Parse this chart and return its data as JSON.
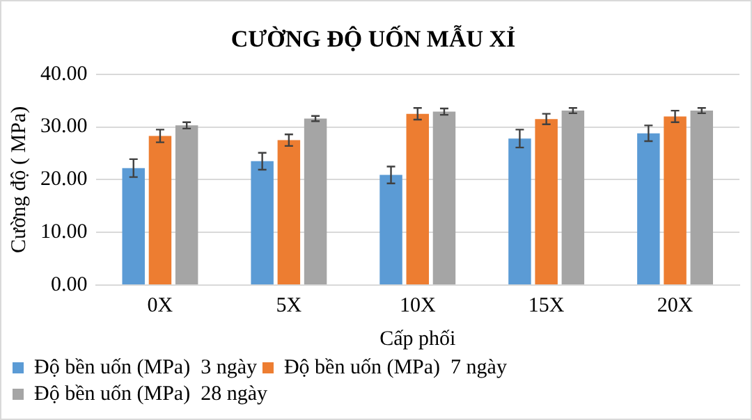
{
  "chart_data": {
    "type": "bar",
    "title": "CƯỜNG ĐỘ UỐN MẪU XỈ",
    "xlabel": "Cấp phối",
    "ylabel": "Cường độ ( MPa)",
    "categories": [
      "0X",
      "5X",
      "10X",
      "15X",
      "20X"
    ],
    "series": [
      {
        "name": "Độ bền uốn (MPa)  3 ngày",
        "color": "#5b9bd5",
        "values": [
          22.2,
          23.5,
          20.9,
          27.8,
          28.8
        ],
        "errors": [
          1.7,
          1.6,
          1.6,
          1.7,
          1.5
        ]
      },
      {
        "name": "Độ bền uốn (MPa)  7 ngày",
        "color": "#ed7d31",
        "values": [
          28.3,
          27.5,
          32.5,
          31.5,
          32.0
        ],
        "errors": [
          1.2,
          1.1,
          1.1,
          1.0,
          1.1
        ]
      },
      {
        "name": "Độ bền uốn (MPa)  28 ngày",
        "color": "#a5a5a5",
        "values": [
          30.3,
          31.6,
          32.9,
          33.1,
          33.1
        ],
        "errors": [
          0.6,
          0.5,
          0.6,
          0.5,
          0.5
        ]
      }
    ],
    "ylim": [
      0,
      40
    ],
    "yticks": [
      {
        "value": 0,
        "label": "0.00"
      },
      {
        "value": 10,
        "label": "10.00"
      },
      {
        "value": 20,
        "label": "20.00"
      },
      {
        "value": 30,
        "label": "30.00"
      },
      {
        "value": 40,
        "label": "40.00"
      }
    ],
    "grid": "y",
    "legend": "bottom"
  }
}
